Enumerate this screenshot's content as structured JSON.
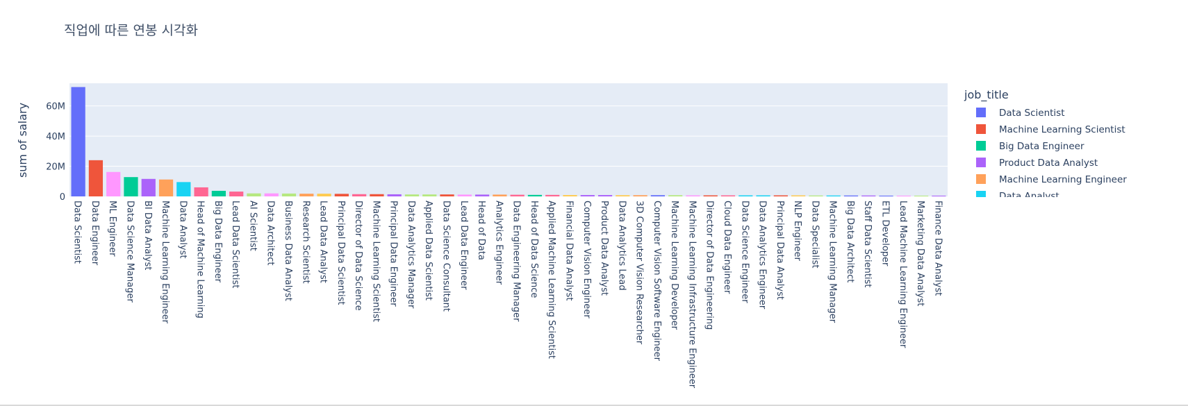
{
  "chart_data": {
    "type": "bar",
    "title": "직업에 따른 연봉 시각화",
    "xlabel": "",
    "ylabel": "sum of salary",
    "ylim": [
      0,
      75000000
    ],
    "yticks": [
      0,
      20000000,
      40000000,
      60000000
    ],
    "ytick_labels": [
      "0",
      "20M",
      "40M",
      "60M"
    ],
    "grid": true,
    "legend": {
      "title": "job_title",
      "placement": "right",
      "entries": [
        "Data Scientist",
        "Machine Learning Scientist",
        "Big Data Engineer",
        "Product Data Analyst",
        "Machine Learning Engineer",
        "Data Analyst"
      ]
    },
    "palette": [
      "#636efa",
      "#EF553B",
      "#00cc96",
      "#ab63fa",
      "#FFA15A",
      "#19d3f3",
      "#FF6692",
      "#B6E880",
      "#FF97FF",
      "#FECB52"
    ],
    "categories": [
      "Data Scientist",
      "Data Engineer",
      "ML Engineer",
      "Data Science Manager",
      "BI Data Analyst",
      "Machine Learning Engineer",
      "Data Analyst",
      "Head of Machine Learning",
      "Big Data Engineer",
      "Lead Data Scientist",
      "AI Scientist",
      "Data Architect",
      "Business Data Analyst",
      "Research Scientist",
      "Lead Data Analyst",
      "Principal Data Scientist",
      "Director of Data Science",
      "Machine Learning Scientist",
      "Principal Data Engineer",
      "Data Analytics Manager",
      "Applied Data Scientist",
      "Data Science Consultant",
      "Lead Data Engineer",
      "Head of Data",
      "Analytics Engineer",
      "Data Engineering Manager",
      "Head of Data Science",
      "Applied Machine Learning Scientist",
      "Financial Data Analyst",
      "Computer Vision Engineer",
      "Product Data Analyst",
      "Data Analytics Lead",
      "3D Computer Vision Researcher",
      "Computer Vision Software Engineer",
      "Machine Learning Developer",
      "Machine Learning Infrastructure Engineer",
      "Director of Data Engineering",
      "Cloud Data Engineer",
      "Data Science Engineer",
      "Data Analytics Engineer",
      "Principal Data Analyst",
      "NLP Engineer",
      "Data Specialist",
      "Machine Learning Manager",
      "Big Data Architect",
      "Staff Data Scientist",
      "ETL Developer",
      "Lead Machine Learning Engineer",
      "Marketing Data Analyst",
      "Finance Data Analyst"
    ],
    "values": [
      72500000,
      24000000,
      16200000,
      12800000,
      11600000,
      11200000,
      9500000,
      6000000,
      3700000,
      3200000,
      2000000,
      2000000,
      1900000,
      1800000,
      1800000,
      1700000,
      1500000,
      1500000,
      1400000,
      1300000,
      1300000,
      1300000,
      1200000,
      1200000,
      1200000,
      1100000,
      1000000,
      1000000,
      900000,
      900000,
      900000,
      800000,
      800000,
      800000,
      800000,
      700000,
      700000,
      700000,
      700000,
      700000,
      700000,
      700000,
      600000,
      600000,
      600000,
      600000,
      500000,
      500000,
      500000,
      500000
    ],
    "color_index": [
      0,
      1,
      8,
      2,
      3,
      4,
      5,
      6,
      2,
      6,
      7,
      8,
      7,
      4,
      9,
      1,
      6,
      1,
      3,
      7,
      7,
      1,
      8,
      3,
      4,
      6,
      2,
      6,
      9,
      3,
      3,
      9,
      4,
      0,
      7,
      8,
      1,
      6,
      5,
      5,
      1,
      9,
      7,
      5,
      0,
      3,
      0,
      8,
      7,
      3
    ]
  }
}
